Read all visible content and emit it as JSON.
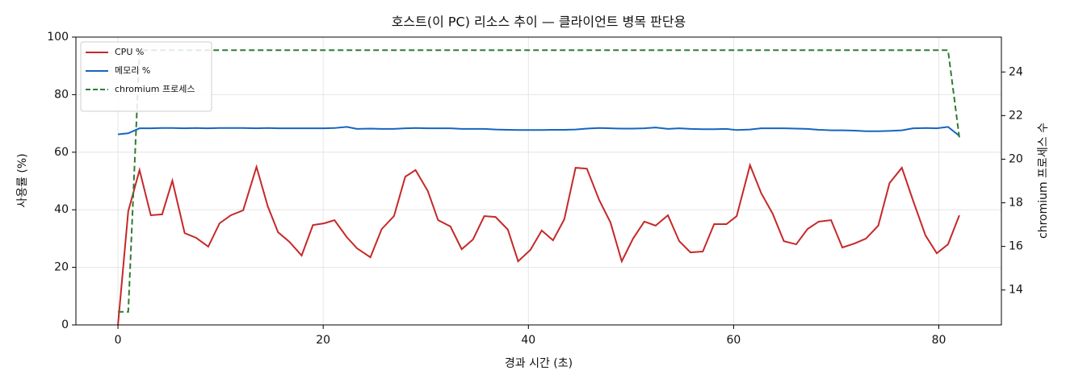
{
  "chart_data": {
    "type": "line",
    "title": "호스트(이 PC) 리소스 추이 — 클라이언트 병목 판단용",
    "xlabel": "경과 시간 (초)",
    "ylabel": "사용률 (%)",
    "y2label": "chromium 프로세스 수",
    "x": [
      0,
      1.0,
      2.1,
      3.2,
      4.3,
      5.3,
      6.5,
      7.6,
      8.8,
      9.9,
      11.0,
      12.2,
      13.5,
      14.6,
      15.6,
      16.7,
      17.9,
      19.0,
      20.1,
      21.1,
      22.3,
      23.3,
      24.6,
      25.7,
      26.9,
      28.0,
      29.0,
      30.2,
      31.2,
      32.4,
      33.5,
      34.6,
      35.7,
      36.8,
      38.0,
      39.0,
      40.2,
      41.3,
      42.4,
      43.5,
      44.6,
      45.7,
      46.9,
      48.0,
      49.1,
      50.2,
      51.3,
      52.4,
      53.6,
      54.7,
      55.8,
      57.0,
      58.1,
      59.3,
      60.3,
      61.6,
      62.7,
      63.8,
      64.9,
      66.1,
      67.2,
      68.3,
      69.5,
      70.6,
      71.8,
      72.9,
      74.1,
      75.2,
      76.4,
      77.5,
      78.7,
      79.8,
      80.9,
      82.0
    ],
    "series": [
      {
        "name": "CPU %",
        "color": "#c62828",
        "linestyle": "solid",
        "axis": "y",
        "values": [
          0,
          39.5,
          53.8,
          38.1,
          38.4,
          50.1,
          31.9,
          30.3,
          27.2,
          35.3,
          38.1,
          39.8,
          54.9,
          41.2,
          32.2,
          28.9,
          24.1,
          34.7,
          35.3,
          36.4,
          30.5,
          26.6,
          23.5,
          33.3,
          37.8,
          51.5,
          53.8,
          46.5,
          36.4,
          34.2,
          26.3,
          29.7,
          37.8,
          37.5,
          33.1,
          22.1,
          26.1,
          32.8,
          29.4,
          36.7,
          54.6,
          54.3,
          43.4,
          35.6,
          22.1,
          30.0,
          35.9,
          34.5,
          38.1,
          29.1,
          25.2,
          25.5,
          35.0,
          35.0,
          37.8,
          55.5,
          45.7,
          38.7,
          29.1,
          28.0,
          33.3,
          35.9,
          36.4,
          26.9,
          28.3,
          30.0,
          34.5,
          49.3,
          54.6,
          43.1,
          31.1,
          24.9,
          28.0,
          38.1
        ]
      },
      {
        "name": "메모리 %",
        "color": "#1565c0",
        "linestyle": "solid",
        "axis": "y",
        "values": [
          66.2,
          66.6,
          68.3,
          68.3,
          68.4,
          68.4,
          68.3,
          68.4,
          68.3,
          68.4,
          68.4,
          68.4,
          68.3,
          68.4,
          68.3,
          68.3,
          68.3,
          68.3,
          68.3,
          68.4,
          68.8,
          68.1,
          68.2,
          68.1,
          68.1,
          68.3,
          68.4,
          68.3,
          68.3,
          68.3,
          68.1,
          68.1,
          68.1,
          67.9,
          67.8,
          67.7,
          67.7,
          67.7,
          67.8,
          67.8,
          67.9,
          68.2,
          68.4,
          68.3,
          68.2,
          68.2,
          68.3,
          68.6,
          68.1,
          68.3,
          68.1,
          68.0,
          68.0,
          68.1,
          67.7,
          67.9,
          68.3,
          68.3,
          68.3,
          68.2,
          68.1,
          67.8,
          67.6,
          67.6,
          67.5,
          67.3,
          67.3,
          67.4,
          67.6,
          68.3,
          68.4,
          68.3,
          68.8,
          65.7
        ]
      },
      {
        "name": "chromium 프로세스",
        "color": "#2e7d32",
        "linestyle": "dashed",
        "axis": "y2",
        "values": [
          13,
          13,
          25,
          25,
          25,
          25,
          25,
          25,
          25,
          25,
          25,
          25,
          25,
          25,
          25,
          25,
          25,
          25,
          25,
          25,
          25,
          25,
          25,
          25,
          25,
          25,
          25,
          25,
          25,
          25,
          25,
          25,
          25,
          25,
          25,
          25,
          25,
          25,
          25,
          25,
          25,
          25,
          25,
          25,
          25,
          25,
          25,
          25,
          25,
          25,
          25,
          25,
          25,
          25,
          25,
          25,
          25,
          25,
          25,
          25,
          25,
          25,
          25,
          25,
          25,
          25,
          25,
          25,
          25,
          25,
          25,
          25,
          25,
          21
        ]
      }
    ],
    "xlim": [
      -4.1,
      86.1
    ],
    "xticks": [
      0,
      20,
      40,
      60,
      80
    ],
    "ylim": [
      0,
      100
    ],
    "yticks": [
      0,
      20,
      40,
      60,
      80,
      100
    ],
    "y2lim": [
      12.4,
      25.6
    ],
    "y2ticks": [
      14,
      16,
      18,
      20,
      22,
      24
    ],
    "grid": true,
    "legend": "upper-left"
  }
}
